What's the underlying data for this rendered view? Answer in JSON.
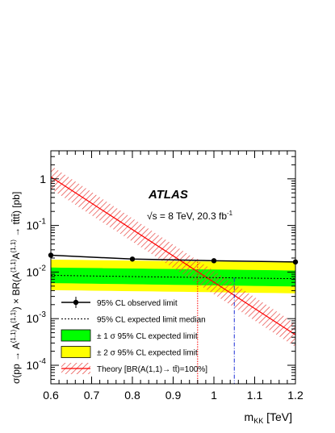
{
  "chart_data": {
    "type": "line",
    "experiment_label": "ATLAS",
    "energy_label": {
      "prefix": "√s = 8 TeV, 20.3 fb",
      "sup": "-1"
    },
    "xlabel": {
      "base": "m",
      "sub": "KK",
      "unit": " [TeV]"
    },
    "ylabel": {
      "parts": [
        {
          "t": "σ(pp → A",
          "k": "n"
        },
        {
          "t": "(1,1)",
          "k": "sup"
        },
        {
          "t": "A",
          "k": "n"
        },
        {
          "t": "(1,1)",
          "k": "sup"
        },
        {
          "t": ") × BR(A",
          "k": "n"
        },
        {
          "t": "(1,1)",
          "k": "sup"
        },
        {
          "t": "A",
          "k": "n"
        },
        {
          "t": "(1,1)",
          "k": "sup"
        },
        {
          "t": " → tt̄tt̄) [pb]",
          "k": "n"
        }
      ]
    },
    "xlim": [
      0.6,
      1.2
    ],
    "ylog": true,
    "ylim": [
      4e-05,
      4
    ],
    "x_ticks": [
      0.6,
      0.7,
      0.8,
      0.9,
      1.0,
      1.1,
      1.2
    ],
    "x_tick_labels": [
      "0.6",
      "0.7",
      "0.8",
      "0.9",
      "1",
      "1.1",
      "1.2"
    ],
    "y_ticks": [
      {
        "value": 0.0001,
        "base": "10",
        "exp": "-4"
      },
      {
        "value": 0.001,
        "base": "10",
        "exp": "-3"
      },
      {
        "value": 0.01,
        "base": "10",
        "exp": "-2"
      },
      {
        "value": 0.1,
        "base": "10",
        "exp": "-1"
      },
      {
        "value": 1,
        "base": "1",
        "exp": ""
      }
    ],
    "observed": {
      "x": [
        0.6,
        0.8,
        1.0,
        1.2
      ],
      "y": [
        0.023,
        0.019,
        0.0175,
        0.0165
      ]
    },
    "expected_median": {
      "x": [
        0.6,
        0.8,
        1.0,
        1.2
      ],
      "y": [
        0.0085,
        0.008,
        0.0076,
        0.0072
      ]
    },
    "band_1sigma": {
      "x": [
        0.6,
        1.2
      ],
      "low": [
        0.0058,
        0.0049
      ],
      "high": [
        0.0125,
        0.0108
      ]
    },
    "band_2sigma": {
      "x": [
        0.6,
        1.2
      ],
      "low": [
        0.0041,
        0.0035
      ],
      "high": [
        0.0185,
        0.016
      ]
    },
    "theory": {
      "x": [
        0.6,
        1.2
      ],
      "y": [
        1.1,
        0.00045
      ],
      "rel_band_low": 0.55,
      "rel_band_high": 1.75
    },
    "observed_mass_limit": 0.96,
    "expected_mass_limit": 1.05,
    "legend": [
      {
        "key": "observed",
        "label": "95% CL observed limit"
      },
      {
        "key": "expected",
        "label": "95% CL expected limit median"
      },
      {
        "key": "band1",
        "label": "± 1 σ 95% CL expected limit"
      },
      {
        "key": "band2",
        "label": "± 2 σ 95% CL expected limit"
      },
      {
        "key": "theory",
        "label": "Theory [BR(A(1,1)→ tt̄)=100%]"
      }
    ],
    "colors": {
      "observed": "#000000",
      "expected": "#000000",
      "band_1sigma": "#00ff00",
      "band_2sigma": "#ffff00",
      "theory": "#ff0000",
      "theory_hatch": "#e8403c",
      "observed_limit_line": "#ff0000",
      "expected_limit_line": "#1a2bd6"
    },
    "legend_placement": "bottom-left",
    "grid": false
  }
}
